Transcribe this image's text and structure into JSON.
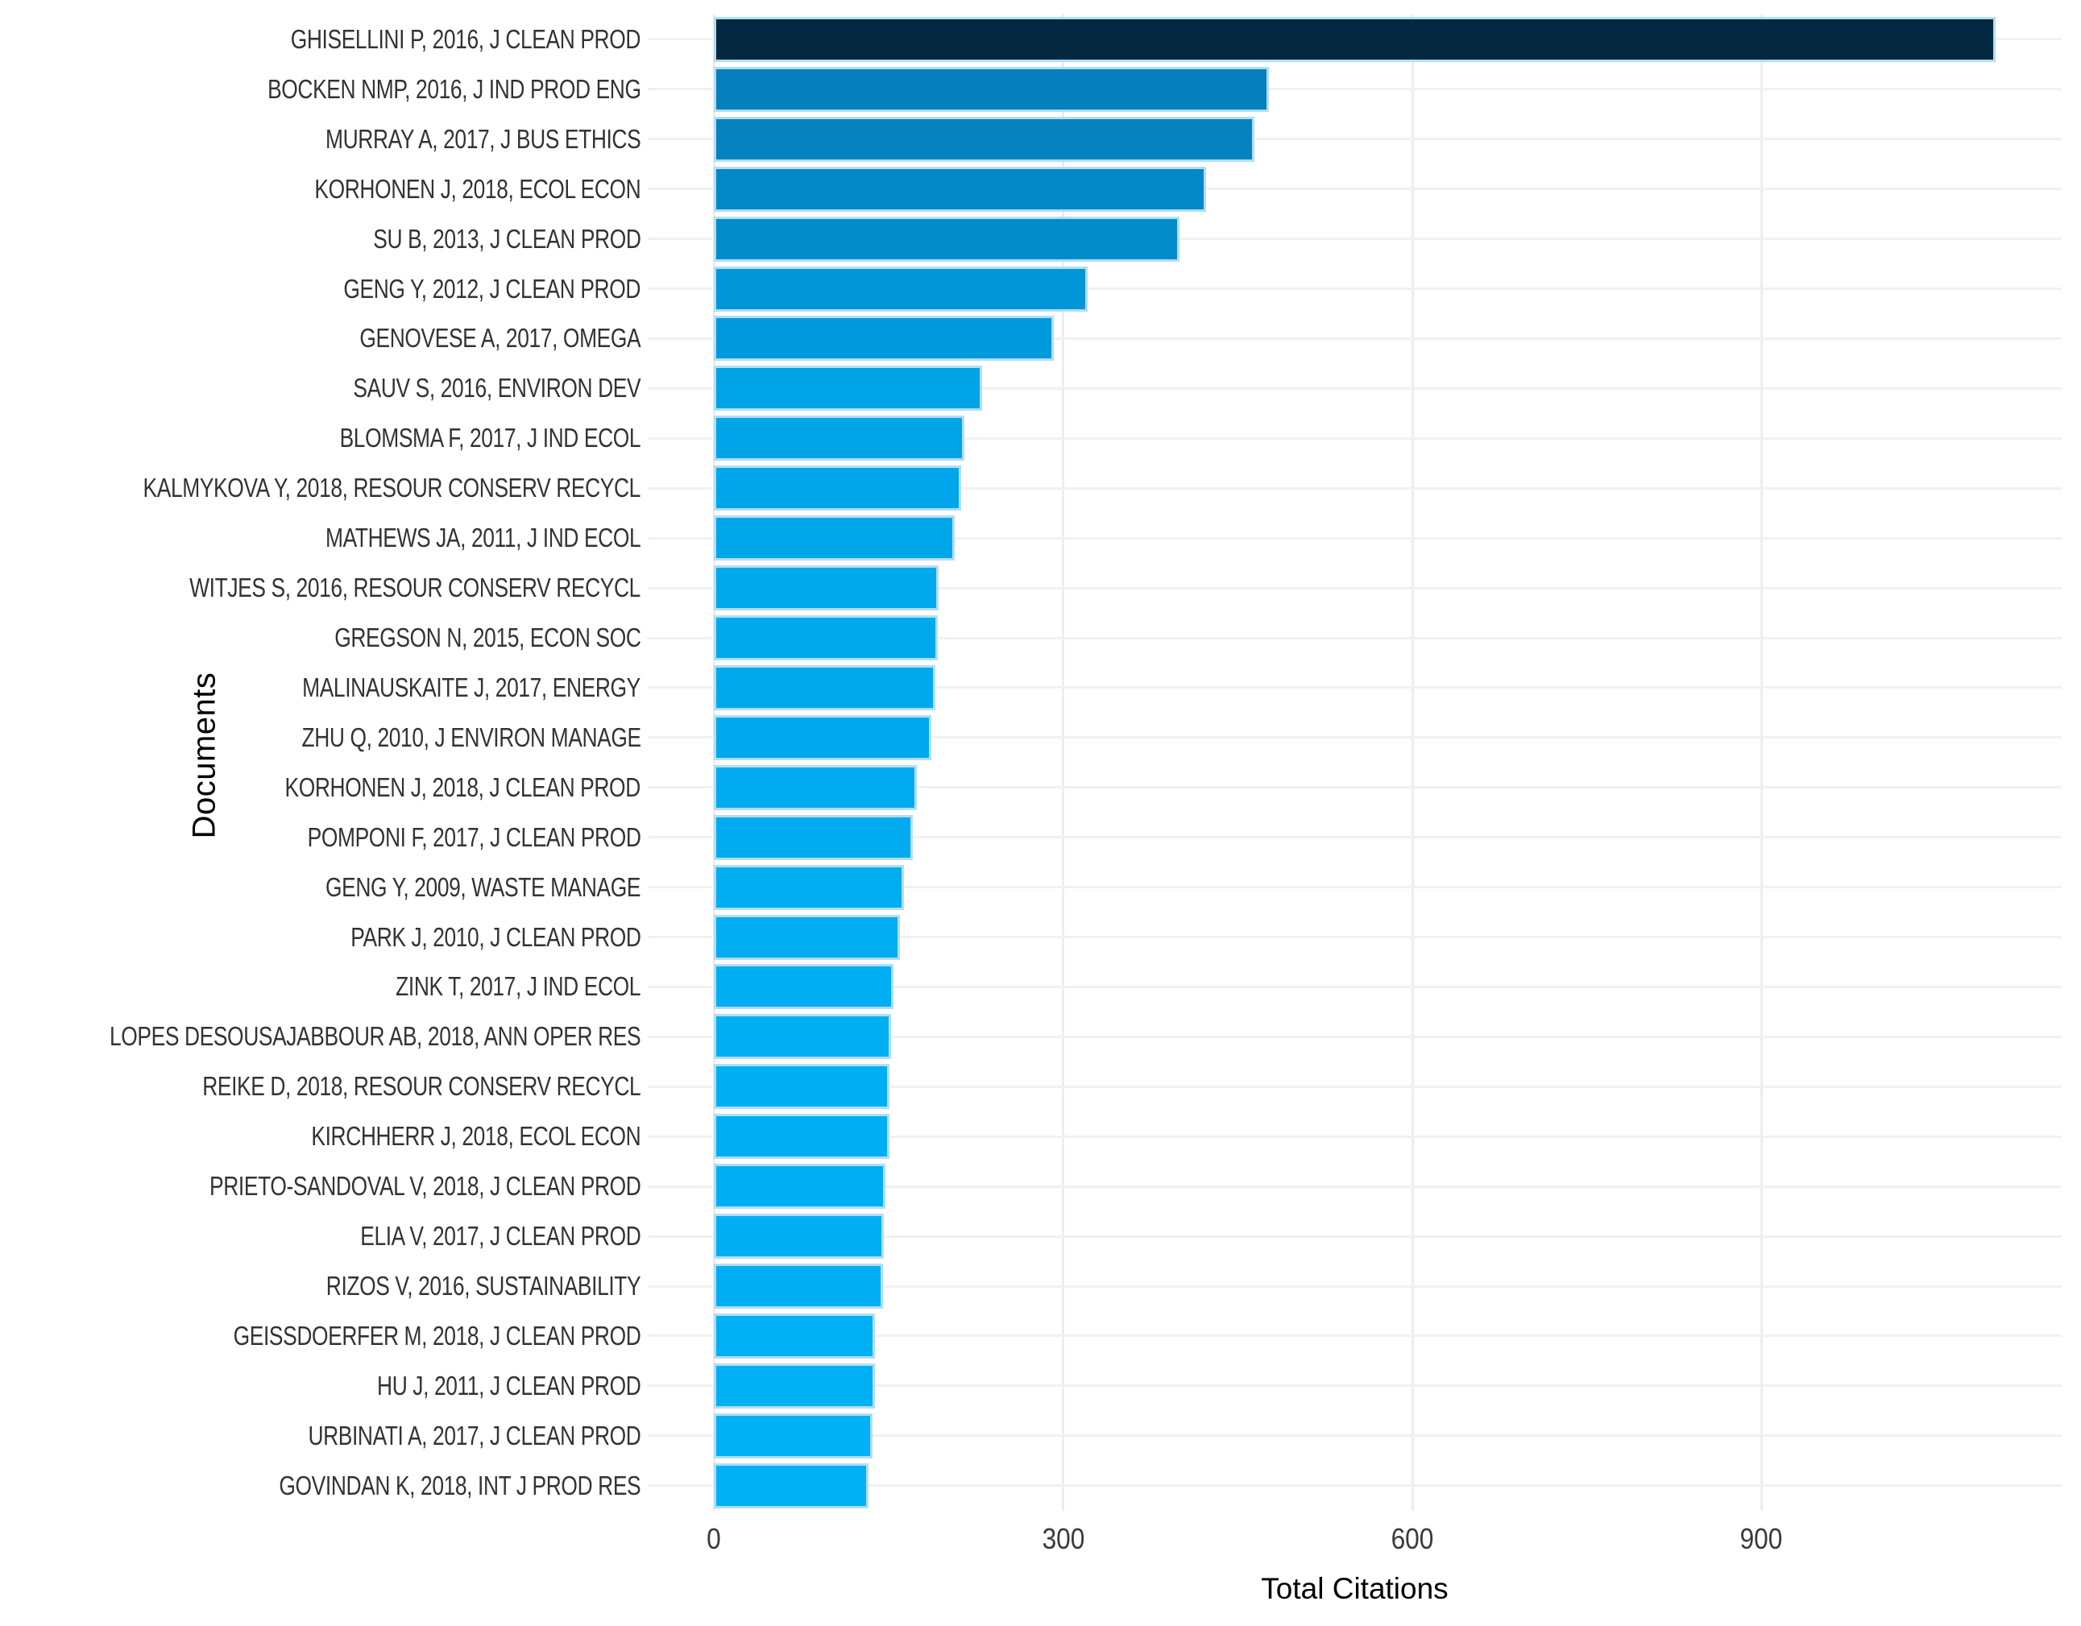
{
  "chart_data": {
    "type": "bar",
    "orientation": "horizontal",
    "title": "",
    "xlabel": "Total Citations",
    "ylabel": "Documents",
    "xlim": [
      -57,
      1158
    ],
    "xticks": [
      0,
      300,
      600,
      900
    ],
    "grid": true,
    "legend": "none",
    "bar_border_color": "#b3ddf4",
    "gridline_color_h": "#f1f1f1",
    "gridline_color_v": "#ededed",
    "axis_text_color": "#3a3a3a",
    "label_text_color": "#333333",
    "colorscale": [
      {
        "value": 133,
        "color": "#00b1f5"
      },
      {
        "value": 230,
        "color": "#00a3e6"
      },
      {
        "value": 321,
        "color": "#0096d8"
      },
      {
        "value": 477,
        "color": "#0680bc"
      },
      {
        "value": 1101,
        "color": "#032840"
      }
    ],
    "categories": [
      "GHISELLINI P, 2016, J CLEAN PROD",
      "BOCKEN NMP, 2016, J IND PROD ENG",
      "MURRAY A, 2017, J BUS ETHICS",
      "KORHONEN J, 2018, ECOL ECON",
      "SU B, 2013, J CLEAN PROD",
      "GENG Y, 2012, J CLEAN PROD",
      "GENOVESE A, 2017, OMEGA",
      "SAUV S, 2016, ENVIRON DEV",
      "BLOMSMA F, 2017, J IND ECOL",
      "KALMYKOVA Y, 2018, RESOUR CONSERV RECYCL",
      "MATHEWS JA, 2011, J IND ECOL",
      "WITJES S, 2016, RESOUR CONSERV RECYCL",
      "GREGSON N, 2015, ECON SOC",
      "MALINAUSKAITE J, 2017, ENERGY",
      "ZHU Q, 2010, J ENVIRON MANAGE",
      "KORHONEN J, 2018, J CLEAN PROD",
      "POMPONI F, 2017, J CLEAN PROD",
      "GENG Y, 2009, WASTE MANAGE",
      "PARK J, 2010, J CLEAN PROD",
      "ZINK T, 2017, J IND ECOL",
      "LOPES DESOUSAJABBOUR AB, 2018, ANN OPER RES",
      "REIKE D, 2018, RESOUR CONSERV RECYCL",
      "KIRCHHERR J, 2018, ECOL ECON",
      "PRIETO-SANDOVAL V, 2018, J CLEAN PROD",
      "ELIA V, 2017, J CLEAN PROD",
      "RIZOS V, 2016, SUSTAINABILITY",
      "GEISSDOERFER M, 2018, J CLEAN PROD",
      "HU J, 2011, J CLEAN PROD",
      "URBINATI A, 2017, J CLEAN PROD",
      "GOVINDAN K, 2018, INT J PROD RES"
    ],
    "values": [
      1101,
      477,
      464,
      423,
      400,
      321,
      292,
      230,
      215,
      212,
      207,
      193,
      192,
      190,
      187,
      174,
      171,
      163,
      160,
      154,
      152,
      151,
      151,
      147,
      146,
      145,
      138,
      138,
      136,
      133
    ]
  }
}
